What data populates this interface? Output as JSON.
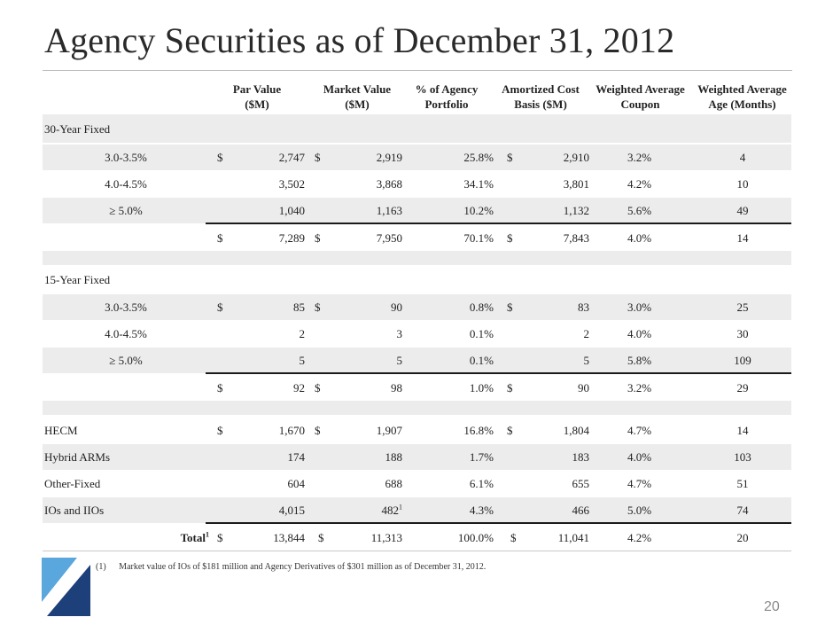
{
  "title": "Agency Securities as of December 31, 2012",
  "headers": [
    {
      "l1": "Par Value",
      "l2": "($M)"
    },
    {
      "l1": "Market Value",
      "l2": "($M)"
    },
    {
      "l1": "% of Agency",
      "l2": "Portfolio"
    },
    {
      "l1": "Amortized Cost",
      "l2": "Basis ($M)"
    },
    {
      "l1": "Weighted Average",
      "l2": "Coupon"
    },
    {
      "l1": "Weighted Average",
      "l2": "Age (Months)"
    }
  ],
  "sections": {
    "fixed30": {
      "label": "30-Year Fixed",
      "rows": [
        {
          "label": "3.0-3.5%",
          "par_sign": "$",
          "par": "2,747",
          "mv_sign": "$",
          "mv": "2,919",
          "mv_note": "",
          "pct": "25.8%",
          "ac_sign": "$",
          "ac": "2,910",
          "coupon": "3.2%",
          "age": "4"
        },
        {
          "label": "4.0-4.5%",
          "par_sign": "",
          "par": "3,502",
          "mv_sign": "",
          "mv": "3,868",
          "mv_note": "",
          "pct": "34.1%",
          "ac_sign": "",
          "ac": "3,801",
          "coupon": "4.2%",
          "age": "10"
        },
        {
          "label": "≥ 5.0%",
          "par_sign": "",
          "par": "1,040",
          "mv_sign": "",
          "mv": "1,163",
          "mv_note": "",
          "pct": "10.2%",
          "ac_sign": "",
          "ac": "1,132",
          "coupon": "5.6%",
          "age": "49"
        }
      ],
      "subtotal": {
        "par_sign": "$",
        "par": "7,289",
        "mv_sign": "$",
        "mv": "7,950",
        "pct": "70.1%",
        "ac_sign": "$",
        "ac": "7,843",
        "coupon": "4.0%",
        "age": "14"
      }
    },
    "fixed15": {
      "label": "15-Year Fixed",
      "rows": [
        {
          "label": "3.0-3.5%",
          "par_sign": "$",
          "par": "85",
          "mv_sign": "$",
          "mv": "90",
          "mv_note": "",
          "pct": "0.8%",
          "ac_sign": "$",
          "ac": "83",
          "coupon": "3.0%",
          "age": "25"
        },
        {
          "label": "4.0-4.5%",
          "par_sign": "",
          "par": "2",
          "mv_sign": "",
          "mv": "3",
          "mv_note": "",
          "pct": "0.1%",
          "ac_sign": "",
          "ac": "2",
          "coupon": "4.0%",
          "age": "30"
        },
        {
          "label": "≥ 5.0%",
          "par_sign": "",
          "par": "5",
          "mv_sign": "",
          "mv": "5",
          "mv_note": "",
          "pct": "0.1%",
          "ac_sign": "",
          "ac": "5",
          "coupon": "5.8%",
          "age": "109"
        }
      ],
      "subtotal": {
        "par_sign": "$",
        "par": "92",
        "mv_sign": "$",
        "mv": "98",
        "pct": "1.0%",
        "ac_sign": "$",
        "ac": "90",
        "coupon": "3.2%",
        "age": "29"
      }
    },
    "other": [
      {
        "label": "HECM",
        "par_sign": "$",
        "par": "1,670",
        "mv_sign": "$",
        "mv": "1,907",
        "mv_note": "",
        "pct": "16.8%",
        "ac_sign": "$",
        "ac": "1,804",
        "coupon": "4.7%",
        "age": "14"
      },
      {
        "label": "Hybrid ARMs",
        "par_sign": "",
        "par": "174",
        "mv_sign": "",
        "mv": "188",
        "mv_note": "",
        "pct": "1.7%",
        "ac_sign": "",
        "ac": "183",
        "coupon": "4.0%",
        "age": "103"
      },
      {
        "label": "Other-Fixed",
        "par_sign": "",
        "par": "604",
        "mv_sign": "",
        "mv": "688",
        "mv_note": "",
        "pct": "6.1%",
        "ac_sign": "",
        "ac": "655",
        "coupon": "4.7%",
        "age": "51"
      },
      {
        "label": "IOs and IIOs",
        "par_sign": "",
        "par": "4,015",
        "mv_sign": "",
        "mv": "482",
        "mv_note": "1",
        "pct": "4.3%",
        "ac_sign": "",
        "ac": "466",
        "coupon": "5.0%",
        "age": "74"
      }
    ],
    "total": {
      "label": "Total",
      "label_note": "1",
      "par_sign": "$",
      "par": "13,844",
      "mv_sign": "$",
      "mv": "11,313",
      "pct": "100.0%",
      "ac_sign": "$",
      "ac": "11,041",
      "coupon": "4.2%",
      "age": "20"
    }
  },
  "footnote": {
    "num": "(1)",
    "text": "Market value of IOs of $181 million and Agency Derivatives of $301 million as of December 31, 2012."
  },
  "page_number": "20"
}
